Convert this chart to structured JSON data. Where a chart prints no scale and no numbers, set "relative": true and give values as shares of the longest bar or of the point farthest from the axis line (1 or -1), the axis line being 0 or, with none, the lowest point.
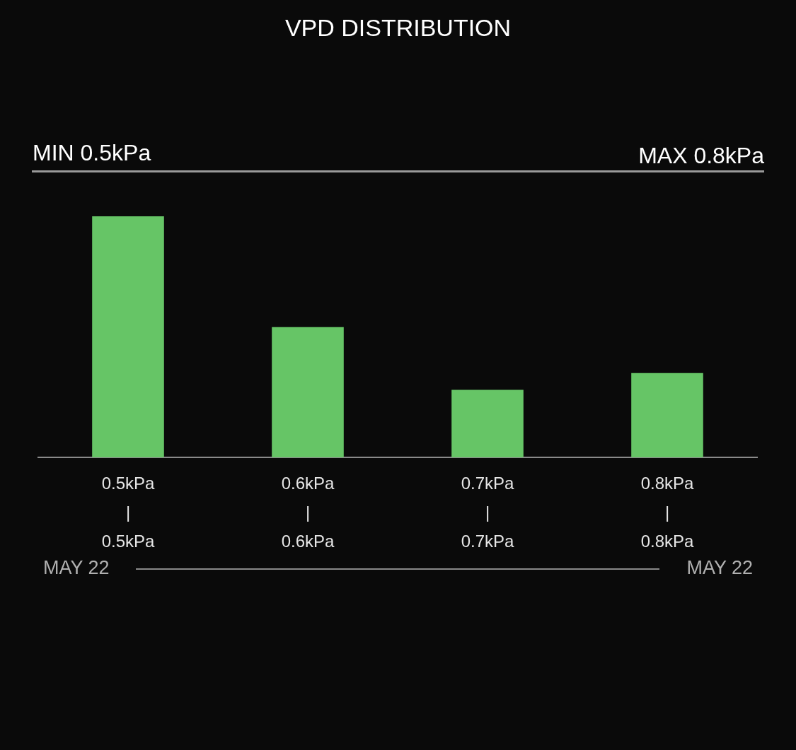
{
  "chart_data": {
    "type": "bar",
    "title": "VPD DISTRIBUTION",
    "categories": [
      "0.5kPa\n|\n0.5kPa",
      "0.6kPa\n|\n0.6kPa",
      "0.7kPa\n|\n0.7kPa",
      "0.8kPa\n|\n0.8kPa"
    ],
    "values": [
      1,
      0.54,
      0.28,
      0.35
    ],
    "color": "#66c566",
    "relative": true,
    "annotations": [
      "MIN 0.5kPa",
      "MAX 0.8kPa",
      "MAY 22",
      "MAY 22"
    ]
  }
}
